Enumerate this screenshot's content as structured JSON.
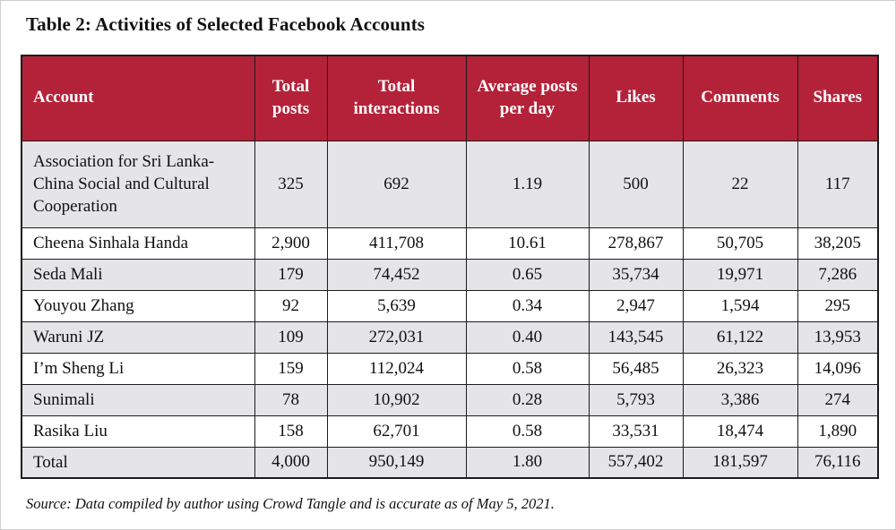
{
  "title": "Table 2: Activities of Selected Facebook Accounts",
  "table": {
    "columns": [
      "Account",
      "Total posts",
      "Total interactions",
      "Average posts per day",
      "Likes",
      "Comments",
      "Shares"
    ],
    "rows": [
      [
        "Association for Sri Lanka-China Social and Cultural Cooperation",
        "325",
        "692",
        "1.19",
        "500",
        "22",
        "117"
      ],
      [
        "Cheena Sinhala Handa",
        "2,900",
        "411,708",
        "10.61",
        "278,867",
        "50,705",
        "38,205"
      ],
      [
        "Seda Mali",
        "179",
        "74,452",
        "0.65",
        "35,734",
        "19,971",
        "7,286"
      ],
      [
        "Youyou Zhang",
        "92",
        "5,639",
        "0.34",
        "2,947",
        "1,594",
        "295"
      ],
      [
        "Waruni JZ",
        "109",
        "272,031",
        "0.40",
        "143,545",
        "61,122",
        "13,953"
      ],
      [
        "I’m Sheng Li",
        "159",
        "112,024",
        "0.58",
        "56,485",
        "26,323",
        "14,096"
      ],
      [
        "Sunimali",
        "78",
        "10,902",
        "0.28",
        "5,793",
        "3,386",
        "274"
      ],
      [
        "Rasika Liu",
        "158",
        "62,701",
        "0.58",
        "33,531",
        "18,474",
        "1,890"
      ],
      [
        "Total",
        "4,000",
        "950,149",
        "1.80",
        "557,402",
        "181,597",
        "76,116"
      ]
    ]
  },
  "source": "Source: Data compiled by author using Crowd Tangle and is accurate as of May 5, 2021.",
  "colors": {
    "header_bg": "#b42239",
    "header_text": "#ffffff",
    "row_stripe": "#e5e5e7",
    "row_plain": "#ffffff",
    "border": "#1c1c1c"
  }
}
